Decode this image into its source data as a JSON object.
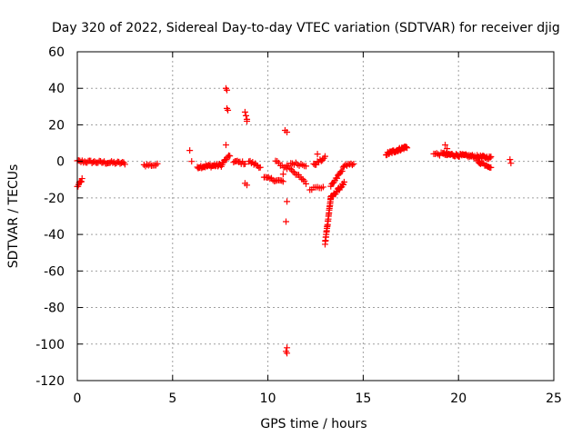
{
  "chart_data": {
    "type": "scatter",
    "title": "Day 320 of 2022, Sidereal Day-to-day VTEC variation (SDTVAR) for receiver djig",
    "xlabel": "GPS time / hours",
    "ylabel": "SDTVAR / TECUs",
    "xlim": [
      0,
      25
    ],
    "ylim": [
      -120,
      60
    ],
    "xticks": [
      0,
      5,
      10,
      15,
      20,
      25
    ],
    "yticks": [
      -120,
      -100,
      -80,
      -60,
      -40,
      -20,
      0,
      20,
      40,
      60
    ],
    "grid": true,
    "marker": "+",
    "marker_color": "#ff0000",
    "series": [
      {
        "name": "SDTVAR",
        "segments": [
          {
            "x": [
              0.0,
              0.25
            ],
            "y": [
              -14,
              -10
            ],
            "n": 8
          },
          {
            "x": [
              0.0,
              2.5
            ],
            "y": [
              0,
              -1
            ],
            "n": 40
          },
          {
            "x": [
              3.5,
              4.2
            ],
            "y": [
              -2,
              -2
            ],
            "n": 10
          },
          {
            "x": [
              6.3,
              7.6
            ],
            "y": [
              -3,
              -2
            ],
            "n": 30
          },
          {
            "x": [
              7.6,
              8.0
            ],
            "y": [
              -1,
              3
            ],
            "n": 8
          },
          {
            "x": [
              8.2,
              8.8
            ],
            "y": [
              0,
              -1
            ],
            "n": 10
          },
          {
            "x": [
              9.0,
              9.6
            ],
            "y": [
              0,
              -3
            ],
            "n": 10
          },
          {
            "x": [
              9.8,
              10.8
            ],
            "y": [
              -9,
              -11
            ],
            "n": 14
          },
          {
            "x": [
              10.4,
              11.0
            ],
            "y": [
              0,
              -4
            ],
            "n": 8
          },
          {
            "x": [
              11.0,
              12.0
            ],
            "y": [
              -2,
              -12
            ],
            "n": 14
          },
          {
            "x": [
              11.2,
              12.0
            ],
            "y": [
              -1,
              -2
            ],
            "n": 10
          },
          {
            "x": [
              12.2,
              12.9
            ],
            "y": [
              -15,
              -14
            ],
            "n": 8
          },
          {
            "x": [
              12.4,
              13.0
            ],
            "y": [
              -2,
              2
            ],
            "n": 10
          },
          {
            "x": [
              13.0,
              13.3
            ],
            "y": [
              -45,
              -20
            ],
            "n": 26
          },
          {
            "x": [
              13.3,
              14.0
            ],
            "y": [
              -20,
              -12
            ],
            "n": 18
          },
          {
            "x": [
              13.3,
              14.0
            ],
            "y": [
              -14,
              -3
            ],
            "n": 14
          },
          {
            "x": [
              14.0,
              14.5
            ],
            "y": [
              -2,
              -2
            ],
            "n": 8
          },
          {
            "x": [
              16.2,
              17.3
            ],
            "y": [
              4,
              8
            ],
            "n": 40
          },
          {
            "x": [
              18.7,
              19.4
            ],
            "y": [
              4,
              4
            ],
            "n": 10
          },
          {
            "x": [
              19.2,
              21.7
            ],
            "y": [
              4,
              2
            ],
            "n": 60
          },
          {
            "x": [
              21.0,
              21.7
            ],
            "y": [
              0,
              -3
            ],
            "n": 14
          }
        ],
        "points": [
          {
            "x": 5.9,
            "y": 6
          },
          {
            "x": 6.0,
            "y": 0
          },
          {
            "x": 7.8,
            "y": 40
          },
          {
            "x": 7.85,
            "y": 39
          },
          {
            "x": 7.85,
            "y": 29
          },
          {
            "x": 7.9,
            "y": 28
          },
          {
            "x": 7.8,
            "y": 9
          },
          {
            "x": 8.8,
            "y": 27
          },
          {
            "x": 8.85,
            "y": 25
          },
          {
            "x": 8.9,
            "y": 23
          },
          {
            "x": 8.9,
            "y": 22
          },
          {
            "x": 8.8,
            "y": -12
          },
          {
            "x": 8.9,
            "y": -13
          },
          {
            "x": 10.9,
            "y": 17
          },
          {
            "x": 11.0,
            "y": 16
          },
          {
            "x": 10.8,
            "y": -7
          },
          {
            "x": 11.0,
            "y": -22
          },
          {
            "x": 10.95,
            "y": -33
          },
          {
            "x": 11.0,
            "y": -102
          },
          {
            "x": 10.95,
            "y": -104
          },
          {
            "x": 11.0,
            "y": -105
          },
          {
            "x": 12.6,
            "y": 4
          },
          {
            "x": 19.3,
            "y": 9
          },
          {
            "x": 19.4,
            "y": 7
          },
          {
            "x": 22.7,
            "y": 1
          },
          {
            "x": 22.75,
            "y": -1
          }
        ]
      }
    ]
  }
}
